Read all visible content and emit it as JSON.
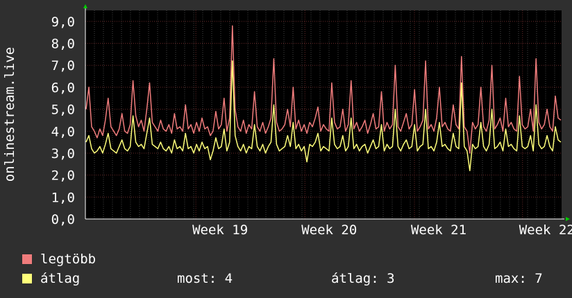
{
  "chart_data": {
    "type": "line",
    "ylabel": "onlinestream.live",
    "ylim": [
      0,
      9.5
    ],
    "y_ticks": [
      "0,0",
      "1,0",
      "2,0",
      "3,0",
      "4,0",
      "5,0",
      "6,0",
      "7,0",
      "8,0",
      "9,0"
    ],
    "x_ticks": [
      "Week 19",
      "Week 20",
      "Week 21",
      "Week 22"
    ],
    "grid": true,
    "series": [
      {
        "name": "legtöbb",
        "color": "#f07c7c",
        "values": [
          5.0,
          6.0,
          4.2,
          4.0,
          3.7,
          4.1,
          3.8,
          4.5,
          5.5,
          4.2,
          4.0,
          3.8,
          4.1,
          4.8,
          4.0,
          3.9,
          4.3,
          6.3,
          4.7,
          4.2,
          4.5,
          4.0,
          5.0,
          6.2,
          4.4,
          4.2,
          4.0,
          4.5,
          4.1,
          4.0,
          4.3,
          3.9,
          4.8,
          4.1,
          4.2,
          4.0,
          5.2,
          4.1,
          4.3,
          3.9,
          4.4,
          4.0,
          4.6,
          4.1,
          4.2,
          3.8,
          4.0,
          4.9,
          4.1,
          4.3,
          5.5,
          4.0,
          4.6,
          8.8,
          5.0,
          4.2,
          4.0,
          4.5,
          3.9,
          4.3,
          4.1,
          5.8,
          4.2,
          4.0,
          4.4,
          3.9,
          4.2,
          4.6,
          7.3,
          4.4,
          4.0,
          4.1,
          4.3,
          5.0,
          4.2,
          6.0,
          4.1,
          4.5,
          4.0,
          4.3,
          3.9,
          4.4,
          4.2,
          4.6,
          5.1,
          4.0,
          4.3,
          4.1,
          4.0,
          6.2,
          4.4,
          4.1,
          4.2,
          5.0,
          4.0,
          4.3,
          6.3,
          4.1,
          4.4,
          4.0,
          4.2,
          4.5,
          3.9,
          4.3,
          4.8,
          4.1,
          4.2,
          5.8,
          4.0,
          4.4,
          4.1,
          4.3,
          7.0,
          4.2,
          4.0,
          4.4,
          4.8,
          4.1,
          4.3,
          5.9,
          4.0,
          4.2,
          4.5,
          7.2,
          4.1,
          4.3,
          4.0,
          4.6,
          6.0,
          4.2,
          4.4,
          4.1,
          4.0,
          5.2,
          4.3,
          4.1,
          7.4,
          4.2,
          4.0,
          3.0,
          4.4,
          4.1,
          4.3,
          6.0,
          4.2,
          4.0,
          4.5,
          7.0,
          4.1,
          4.3,
          4.6,
          4.0,
          5.5,
          4.2,
          4.4,
          4.1,
          4.0,
          6.5,
          4.3,
          4.1,
          4.2,
          5.0,
          4.0,
          7.3,
          4.4,
          4.1,
          4.3,
          5.0,
          4.2,
          4.0,
          5.6,
          4.6,
          4.5
        ]
      },
      {
        "name": "átlag",
        "color": "#ffff7a",
        "values": [
          3.5,
          3.8,
          3.2,
          3.0,
          3.1,
          3.3,
          3.0,
          3.4,
          3.9,
          3.2,
          3.1,
          3.0,
          3.3,
          3.6,
          3.2,
          3.1,
          3.3,
          4.7,
          3.5,
          3.3,
          3.4,
          3.2,
          3.9,
          4.6,
          3.4,
          3.3,
          3.2,
          3.5,
          3.2,
          3.1,
          3.3,
          3.0,
          3.6,
          3.2,
          3.3,
          3.1,
          3.9,
          3.2,
          3.3,
          3.0,
          3.4,
          3.1,
          3.5,
          3.2,
          3.3,
          2.7,
          3.1,
          3.7,
          3.2,
          3.3,
          4.1,
          3.1,
          3.5,
          7.2,
          3.8,
          3.3,
          3.1,
          3.4,
          3.0,
          3.3,
          3.2,
          4.3,
          3.3,
          3.1,
          3.4,
          3.0,
          3.3,
          3.5,
          5.2,
          3.4,
          3.1,
          3.2,
          3.3,
          3.8,
          3.3,
          4.4,
          3.2,
          3.4,
          3.1,
          3.3,
          2.6,
          3.4,
          3.3,
          3.5,
          3.9,
          3.1,
          3.3,
          3.2,
          3.1,
          4.6,
          3.4,
          3.2,
          3.3,
          3.8,
          3.1,
          3.3,
          4.6,
          3.2,
          3.4,
          3.1,
          3.3,
          3.4,
          3.0,
          3.3,
          3.6,
          3.2,
          3.3,
          4.3,
          3.1,
          3.4,
          3.2,
          3.3,
          5.0,
          3.3,
          3.1,
          3.4,
          3.6,
          3.2,
          3.3,
          4.3,
          3.1,
          3.3,
          3.4,
          5.0,
          3.2,
          3.3,
          3.1,
          3.5,
          4.4,
          3.3,
          3.4,
          3.2,
          3.1,
          3.9,
          3.3,
          3.2,
          6.2,
          3.3,
          3.1,
          2.2,
          3.4,
          3.2,
          3.3,
          4.4,
          3.3,
          3.1,
          3.4,
          5.0,
          3.2,
          3.3,
          3.5,
          3.1,
          4.1,
          3.3,
          3.4,
          3.2,
          3.1,
          4.7,
          3.3,
          3.2,
          3.3,
          3.8,
          3.1,
          5.2,
          3.4,
          3.2,
          3.3,
          3.8,
          3.3,
          3.1,
          4.2,
          3.6,
          3.5
        ]
      }
    ]
  },
  "legend": {
    "items": [
      {
        "label": "legtöbb",
        "color": "#f07c7c"
      },
      {
        "label": "átlag",
        "color": "#ffff7a"
      }
    ]
  },
  "stats": {
    "most": "most: 4",
    "atlag": "átlag: 3",
    "max": "max: 7"
  }
}
